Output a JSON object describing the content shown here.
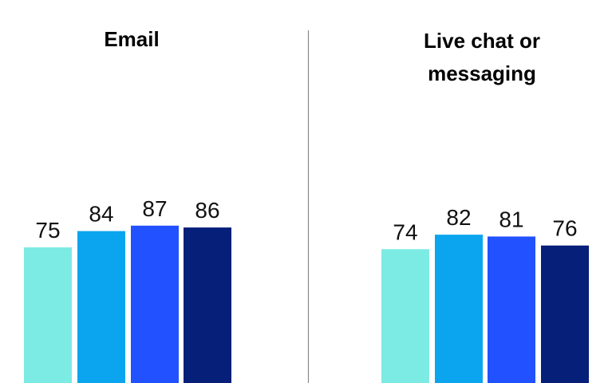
{
  "chart_data": [
    {
      "type": "bar",
      "title": [
        "Email"
      ],
      "series_colors": [
        "#7CEBE4",
        "#0AA5EE",
        "#2251FF",
        "#061F79"
      ],
      "values": [
        75,
        84,
        87,
        86
      ],
      "data_labels": [
        "75",
        "84",
        "87",
        "86"
      ],
      "legend": "none",
      "grid": false
    },
    {
      "type": "bar",
      "title": [
        "Live chat or",
        "messaging"
      ],
      "series_colors": [
        "#7CEBE4",
        "#0AA5EE",
        "#2251FF",
        "#061F79"
      ],
      "values": [
        74,
        82,
        81,
        76
      ],
      "data_labels": [
        "74",
        "82",
        "81",
        "76"
      ],
      "legend": "none",
      "grid": false
    }
  ]
}
